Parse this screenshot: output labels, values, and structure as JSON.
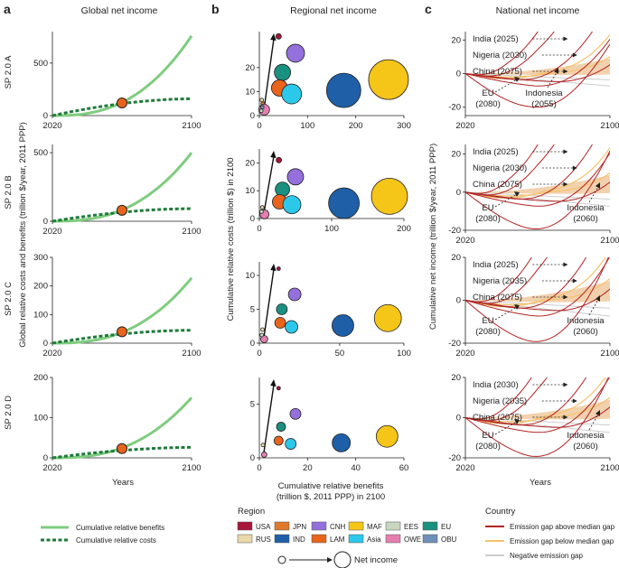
{
  "panel_letters": [
    "a",
    "b",
    "c"
  ],
  "column_titles": {
    "a": "Global net income",
    "b": "Regional net income",
    "c": "National net income"
  },
  "scenarios": [
    "SP 2.0 A",
    "SP 2.0 B",
    "SP 2.0 C",
    "SP 2.0 D"
  ],
  "colors": {
    "benefits": "#7fcc7f",
    "costs": "#1f7a3a",
    "marker": "#e8641c",
    "above": "#b22222",
    "below": "#f5c36b",
    "negative": "#cccccc",
    "band": "#f0c9a0"
  },
  "chart_data": [
    {
      "panel": "a",
      "type": "line",
      "title": "Global net income",
      "xlabel": "Years",
      "ylabel": "Global relative costs and benefits (trillion $/year, 2011 PPP)",
      "x_ticks": [
        "2020",
        "2100"
      ],
      "subplots": [
        {
          "scenario": "SP 2.0 A",
          "ylim": [
            0,
            800
          ],
          "y_ticks": [
            0,
            500
          ],
          "benefits_end": 760,
          "costs_end": 160,
          "crossover": [
            2060,
            120
          ]
        },
        {
          "scenario": "SP 2.0 B",
          "ylim": [
            0,
            560
          ],
          "y_ticks": [
            0,
            500
          ],
          "benefits_end": 500,
          "costs_end": 92,
          "crossover": [
            2060,
            80
          ]
        },
        {
          "scenario": "SP 2.0 C",
          "ylim": [
            0,
            300
          ],
          "y_ticks": [
            0,
            100,
            200,
            300
          ],
          "benefits_end": 228,
          "costs_end": 45,
          "crossover": [
            2060,
            40
          ]
        },
        {
          "scenario": "SP 2.0 D",
          "ylim": [
            0,
            200
          ],
          "y_ticks": [
            0,
            100,
            200
          ],
          "benefits_end": 150,
          "costs_end": 26,
          "crossover": [
            2060,
            23
          ]
        }
      ],
      "series": [
        {
          "name": "Cumulative relative benefits"
        },
        {
          "name": "Cumulative relative costs"
        }
      ]
    },
    {
      "panel": "b",
      "type": "scatter",
      "title": "Regional net income",
      "xlabel": "Cumulative relative benefits",
      "xlabel2": "(trillion $, 2011 PPP) in 2100",
      "ylabel": "Cumulative relative costs (trillion $) in 2100",
      "subplots": [
        {
          "scenario": "SP 2.0 A",
          "xlim": [
            0,
            300
          ],
          "x_ticks": [
            0,
            100,
            200,
            300
          ],
          "ylim": [
            0,
            35
          ],
          "y_ticks": [
            0,
            10,
            20
          ],
          "points": [
            {
              "region": "USA",
              "x": 40,
              "y": 33,
              "r": 3
            },
            {
              "region": "CNH",
              "x": 75,
              "y": 26,
              "r": 10
            },
            {
              "region": "EU",
              "x": 48,
              "y": 18,
              "r": 9
            },
            {
              "region": "MAF",
              "x": 268,
              "y": 15,
              "r": 22
            },
            {
              "region": "IND",
              "x": 175,
              "y": 10.5,
              "r": 19
            },
            {
              "region": "LAM",
              "x": 42,
              "y": 11.5,
              "r": 9
            },
            {
              "region": "Asia",
              "x": 67,
              "y": 9,
              "r": 11
            },
            {
              "region": "RUS",
              "x": 5,
              "y": 6.5,
              "r": 2
            },
            {
              "region": "JPN",
              "x": 7,
              "y": 5,
              "r": 2
            },
            {
              "region": "OWE",
              "x": 10,
              "y": 2.5,
              "r": 6
            },
            {
              "region": "OBU",
              "x": 6,
              "y": 3.5,
              "r": 2
            },
            {
              "region": "EES",
              "x": 4,
              "y": 2,
              "r": 2
            }
          ]
        },
        {
          "scenario": "SP 2.0 B",
          "xlim": [
            0,
            200
          ],
          "x_ticks": [
            0,
            100,
            200
          ],
          "ylim": [
            0,
            25
          ],
          "y_ticks": [
            0,
            10,
            20
          ],
          "points": [
            {
              "region": "USA",
              "x": 27,
              "y": 21,
              "r": 3
            },
            {
              "region": "CNH",
              "x": 50,
              "y": 15,
              "r": 9
            },
            {
              "region": "EU",
              "x": 32,
              "y": 10.5,
              "r": 8
            },
            {
              "region": "MAF",
              "x": 180,
              "y": 8,
              "r": 20
            },
            {
              "region": "IND",
              "x": 117,
              "y": 5.5,
              "r": 17
            },
            {
              "region": "LAM",
              "x": 28,
              "y": 6,
              "r": 8
            },
            {
              "region": "Asia",
              "x": 45,
              "y": 5,
              "r": 10
            },
            {
              "region": "RUS",
              "x": 4,
              "y": 4,
              "r": 2
            },
            {
              "region": "OWE",
              "x": 7,
              "y": 1.5,
              "r": 5
            },
            {
              "region": "EES",
              "x": 3,
              "y": 2.5,
              "r": 2
            }
          ]
        },
        {
          "scenario": "SP 2.0 C",
          "xlim": [
            0,
            90
          ],
          "x_ticks": [
            0,
            50,
            100
          ],
          "ylim": [
            0,
            12
          ],
          "y_ticks": [
            0,
            5,
            10
          ],
          "points": [
            {
              "region": "USA",
              "x": 12,
              "y": 11,
              "r": 2
            },
            {
              "region": "CNH",
              "x": 22,
              "y": 7.2,
              "r": 7
            },
            {
              "region": "EU",
              "x": 14,
              "y": 5,
              "r": 6
            },
            {
              "region": "MAF",
              "x": 80,
              "y": 3.7,
              "r": 15
            },
            {
              "region": "IND",
              "x": 52,
              "y": 2.6,
              "r": 12
            },
            {
              "region": "LAM",
              "x": 13,
              "y": 3,
              "r": 6
            },
            {
              "region": "Asia",
              "x": 20,
              "y": 2.4,
              "r": 7
            },
            {
              "region": "RUS",
              "x": 2,
              "y": 2,
              "r": 2
            },
            {
              "region": "OWE",
              "x": 3,
              "y": 0.6,
              "r": 4
            },
            {
              "region": "EES",
              "x": 1.5,
              "y": 1.2,
              "r": 2
            }
          ]
        },
        {
          "scenario": "SP 2.0 D",
          "xlim": [
            0,
            60
          ],
          "x_ticks": [
            0,
            20,
            40,
            60
          ],
          "ylim": [
            0,
            7.5
          ],
          "y_ticks": [
            0,
            5
          ],
          "points": [
            {
              "region": "USA",
              "x": 8,
              "y": 6.5,
              "r": 2
            },
            {
              "region": "CNH",
              "x": 15,
              "y": 4.1,
              "r": 6
            },
            {
              "region": "EU",
              "x": 9,
              "y": 2.9,
              "r": 5
            },
            {
              "region": "MAF",
              "x": 53,
              "y": 2,
              "r": 12
            },
            {
              "region": "IND",
              "x": 34,
              "y": 1.4,
              "r": 10
            },
            {
              "region": "LAM",
              "x": 8,
              "y": 1.6,
              "r": 5
            },
            {
              "region": "Asia",
              "x": 13,
              "y": 1.3,
              "r": 6
            },
            {
              "region": "RUS",
              "x": 1.5,
              "y": 1.2,
              "r": 2
            },
            {
              "region": "OWE",
              "x": 2,
              "y": 0.3,
              "r": 3
            }
          ]
        }
      ]
    },
    {
      "panel": "c",
      "type": "line",
      "title": "National net income",
      "xlabel": "Years",
      "ylabel": "Cumulative net income (trillion $/year, 2011 PPP)",
      "x_ticks": [
        "2020",
        "2100"
      ],
      "subplots": [
        {
          "scenario": "SP 2.0 A",
          "ylim": [
            -25,
            25
          ],
          "y_ticks": [
            -20,
            0,
            20
          ],
          "labels": [
            "India (2025)",
            "Nigeria (2030)",
            "China (2075)",
            "EU\n(2080)",
            "Indonesia\n(2055)"
          ]
        },
        {
          "scenario": "SP 2.0 B",
          "ylim": [
            -20,
            25
          ],
          "y_ticks": [
            -20,
            0,
            20
          ],
          "labels": [
            "India (2025)",
            "Nigeria (2030)",
            "China (2075)",
            "EU\n(2080)",
            "Indonesia\n(2060)"
          ]
        },
        {
          "scenario": "SP 2.0 C",
          "ylim": [
            -20,
            20
          ],
          "y_ticks": [
            -20,
            0,
            20
          ],
          "labels": [
            "India (2025)",
            "Nigeria (2035)",
            "China (2075)",
            "EU\n(2080)",
            "Indonesia\n(2060)"
          ]
        },
        {
          "scenario": "SP 2.0 D",
          "ylim": [
            -20,
            20
          ],
          "y_ticks": [
            -20,
            0,
            20
          ],
          "labels": [
            "India (2030)",
            "Nigeria (2035)",
            "China (2075)",
            "EU\n(2080)",
            "Indonesia\n(2060)"
          ]
        }
      ]
    }
  ],
  "legend_a": [
    "Cumulative relative benefits",
    "Cumulative relative costs"
  ],
  "legend_region": {
    "title": "Region",
    "items": [
      {
        "code": "USA",
        "color": "#a8163a"
      },
      {
        "code": "JPN",
        "color": "#e07a2a"
      },
      {
        "code": "CNH",
        "color": "#9370db"
      },
      {
        "code": "MAF",
        "color": "#f5c518"
      },
      {
        "code": "EES",
        "color": "#c9d6c0"
      },
      {
        "code": "EU",
        "color": "#1a9080"
      },
      {
        "code": "RUS",
        "color": "#e9d9a8"
      },
      {
        "code": "IND",
        "color": "#1e5fa8"
      },
      {
        "code": "LAM",
        "color": "#e8641c"
      },
      {
        "code": "Asia",
        "color": "#2bc8ea"
      },
      {
        "code": "OWE",
        "color": "#e67eb0"
      },
      {
        "code": "OBU",
        "color": "#6f8fb8"
      }
    ]
  },
  "net_income_label": "Net income",
  "legend_country": {
    "title": "Country",
    "items": [
      "Emission gap above median gap",
      "Emission gap below median gap",
      "Negative emission gap"
    ]
  }
}
